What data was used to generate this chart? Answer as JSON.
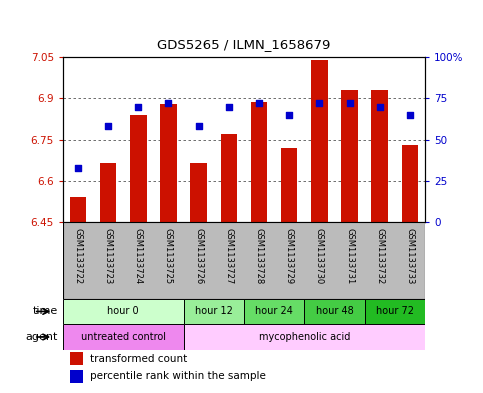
{
  "title": "GDS5265 / ILMN_1658679",
  "samples": [
    "GSM1133722",
    "GSM1133723",
    "GSM1133724",
    "GSM1133725",
    "GSM1133726",
    "GSM1133727",
    "GSM1133728",
    "GSM1133729",
    "GSM1133730",
    "GSM1133731",
    "GSM1133732",
    "GSM1133733"
  ],
  "transformed_count": [
    6.54,
    6.665,
    6.84,
    6.88,
    6.665,
    6.77,
    6.885,
    6.72,
    7.04,
    6.93,
    6.93,
    6.73
  ],
  "percentile_rank": [
    33,
    58,
    70,
    72,
    58,
    70,
    72,
    65,
    72,
    72,
    70,
    65
  ],
  "bar_bottom": 6.45,
  "ylim_left": [
    6.45,
    7.05
  ],
  "ylim_right": [
    0,
    100
  ],
  "yticks_left": [
    6.45,
    6.6,
    6.75,
    6.9,
    7.05
  ],
  "yticks_right": [
    0,
    25,
    50,
    75,
    100
  ],
  "ytick_labels_left": [
    "6.45",
    "6.6",
    "6.75",
    "6.9",
    "7.05"
  ],
  "ytick_labels_right": [
    "0",
    "25",
    "50",
    "75",
    "100%"
  ],
  "bar_color": "#cc1100",
  "dot_color": "#0000cc",
  "grid_color": "#555555",
  "time_groups": [
    {
      "label": "hour 0",
      "start": 0,
      "end": 4,
      "color": "#ccffcc"
    },
    {
      "label": "hour 12",
      "start": 4,
      "end": 6,
      "color": "#99ee99"
    },
    {
      "label": "hour 24",
      "start": 6,
      "end": 8,
      "color": "#66dd66"
    },
    {
      "label": "hour 48",
      "start": 8,
      "end": 10,
      "color": "#44cc44"
    },
    {
      "label": "hour 72",
      "start": 10,
      "end": 12,
      "color": "#22bb22"
    }
  ],
  "agent_groups": [
    {
      "label": "untreated control",
      "start": 0,
      "end": 4,
      "color": "#ee88ee"
    },
    {
      "label": "mycophenolic acid",
      "start": 4,
      "end": 12,
      "color": "#ffccff"
    }
  ],
  "sample_bg_color": "#bbbbbb",
  "bg_color": "#ffffff",
  "legend_items": [
    {
      "label": "transformed count",
      "color": "#cc1100",
      "marker": "s"
    },
    {
      "label": "percentile rank within the sample",
      "color": "#0000cc",
      "marker": "s"
    }
  ]
}
